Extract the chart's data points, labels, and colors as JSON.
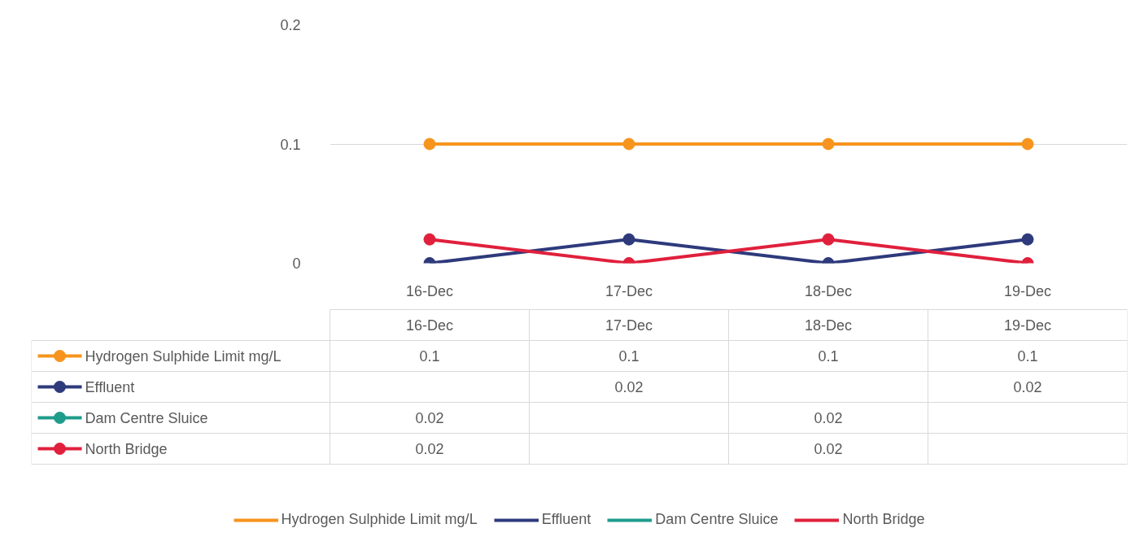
{
  "chart_data": {
    "type": "line",
    "categories": [
      "16-Dec",
      "17-Dec",
      "18-Dec",
      "19-Dec"
    ],
    "ylim": [
      0,
      0.2
    ],
    "yticks": [
      0,
      0.1,
      0.2
    ],
    "grid": "y",
    "legend": "bottom",
    "marker": "circle",
    "line_style": "solid",
    "series": [
      {
        "name": "Hydrogen Sulphide Limit mg/L",
        "color": "#f7941d",
        "values": [
          0.1,
          0.1,
          0.1,
          0.1
        ],
        "value_labels": [
          "0.1",
          "0.1",
          "0.1",
          "0.1"
        ]
      },
      {
        "name": "Effluent",
        "color": "#2e3a7c",
        "values": [
          0,
          0.02,
          0,
          0.02
        ],
        "value_labels": [
          null,
          "0.02",
          null,
          "0.02"
        ]
      },
      {
        "name": "Dam Centre Sluice",
        "color": "#1e9c8c",
        "values": [
          null,
          null,
          null,
          null
        ],
        "value_labels": [
          "0.02",
          null,
          "0.02",
          null
        ]
      },
      {
        "name": "North Bridge",
        "color": "#e0203c",
        "values": [
          0.02,
          0,
          0.02,
          0
        ],
        "value_labels": [
          "0.02",
          null,
          "0.02",
          null
        ]
      }
    ]
  }
}
